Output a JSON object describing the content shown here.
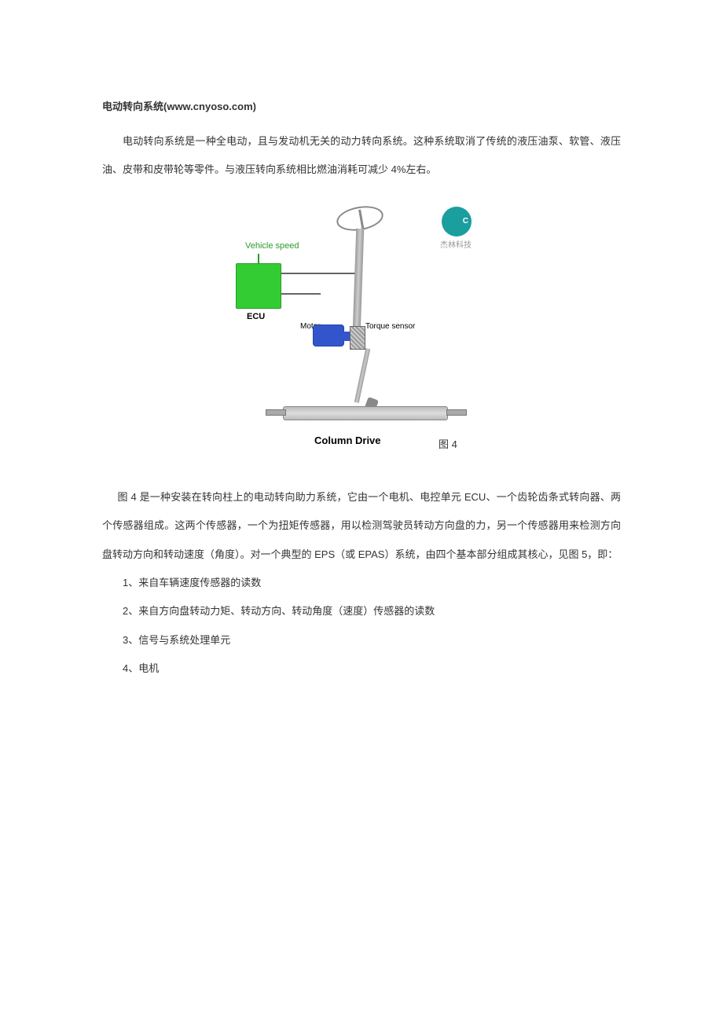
{
  "title": "电动转向系统(www.cnyoso.com)",
  "para1": "电动转向系统是一种全电动，且与发动机无关的动力转向系统。这种系统取消了传统的液压油泵、软管、液压油、皮带和皮带轮等零件。与液压转向系统相比燃油消耗可减少 4%左右。",
  "diagram": {
    "vehicle_speed_label": "Vehicle speed",
    "ecu_label": "ECU",
    "motor_label": "Motor",
    "torque_label": "Torque sensor",
    "column_drive_label": "Column Drive",
    "logo_letter": "C",
    "logo_text": "杰林科技",
    "figure_caption": "图 4",
    "colors": {
      "ecu_box": "#33cc33",
      "ecu_border": "#2a9c2a",
      "motor": "#3355cc",
      "logo": "#1a9e9e",
      "metal": "#999999",
      "line": "#666666"
    }
  },
  "para2": "图 4 是一种安装在转向柱上的电动转向助力系统，它由一个电机、电控单元 ECU、一个齿轮齿条式转向器、两个传感器组成。这两个传感器，一个为扭矩传感器，用以检测驾驶员转动方向盘的力，另一个传感器用来检测方向盘转动方向和转动速度（角度）。对一个典型的 EPS（或 EPAS）系统，由四个基本部分组成其核心，见图 5，即：",
  "list": {
    "item1": "1、来自车辆速度传感器的读数",
    "item2": "2、来自方向盘转动力矩、转动方向、转动角度（速度）传感器的读数",
    "item3": "3、信号与系统处理单元",
    "item4": "4、电机"
  }
}
